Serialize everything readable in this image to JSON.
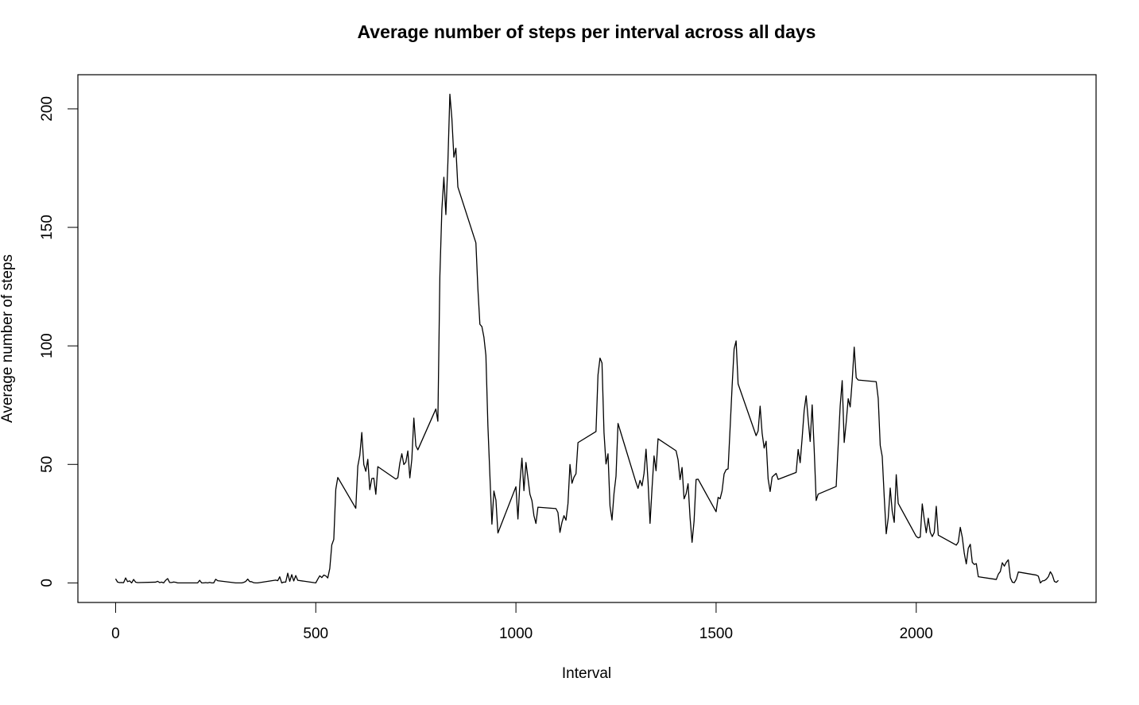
{
  "chart_data": {
    "type": "line",
    "title": "Average number of steps per interval across all days",
    "x_label": "Interval",
    "y_label": "Average number of steps",
    "xlim": [
      -94.2,
      2449.2
    ],
    "ylim": [
      -8.25,
      214.4
    ],
    "xticks": [
      0,
      500,
      1000,
      1500,
      2000
    ],
    "yticks": [
      0,
      50,
      100,
      150,
      200
    ],
    "color": "#000000",
    "x": [
      0,
      5,
      10,
      15,
      20,
      25,
      30,
      35,
      40,
      45,
      50,
      55,
      100,
      105,
      110,
      115,
      120,
      125,
      130,
      135,
      140,
      145,
      150,
      155,
      200,
      205,
      210,
      215,
      220,
      225,
      230,
      235,
      240,
      245,
      250,
      255,
      300,
      305,
      310,
      315,
      320,
      325,
      330,
      335,
      340,
      345,
      350,
      355,
      400,
      405,
      410,
      415,
      420,
      425,
      430,
      435,
      440,
      445,
      450,
      455,
      500,
      505,
      510,
      515,
      520,
      525,
      530,
      535,
      540,
      545,
      550,
      555,
      600,
      605,
      610,
      615,
      620,
      625,
      630,
      635,
      640,
      645,
      650,
      655,
      700,
      705,
      710,
      715,
      720,
      725,
      730,
      735,
      740,
      745,
      750,
      755,
      800,
      805,
      810,
      815,
      820,
      825,
      830,
      835,
      840,
      845,
      850,
      855,
      900,
      905,
      910,
      915,
      920,
      925,
      930,
      935,
      940,
      945,
      950,
      955,
      1000,
      1005,
      1010,
      1015,
      1020,
      1025,
      1030,
      1035,
      1040,
      1045,
      1050,
      1055,
      1100,
      1105,
      1110,
      1115,
      1120,
      1125,
      1130,
      1135,
      1140,
      1145,
      1150,
      1155,
      1200,
      1205,
      1210,
      1215,
      1220,
      1225,
      1230,
      1235,
      1240,
      1245,
      1250,
      1255,
      1300,
      1305,
      1310,
      1315,
      1320,
      1325,
      1330,
      1335,
      1340,
      1345,
      1350,
      1355,
      1400,
      1405,
      1410,
      1415,
      1420,
      1425,
      1430,
      1435,
      1440,
      1445,
      1450,
      1455,
      1500,
      1505,
      1510,
      1515,
      1520,
      1525,
      1530,
      1535,
      1540,
      1545,
      1550,
      1555,
      1600,
      1605,
      1610,
      1615,
      1620,
      1625,
      1630,
      1635,
      1640,
      1645,
      1650,
      1655,
      1700,
      1705,
      1710,
      1715,
      1720,
      1725,
      1730,
      1735,
      1740,
      1745,
      1750,
      1755,
      1800,
      1805,
      1810,
      1815,
      1820,
      1825,
      1830,
      1835,
      1840,
      1845,
      1850,
      1855,
      1900,
      1905,
      1910,
      1915,
      1920,
      1925,
      1930,
      1935,
      1940,
      1945,
      1950,
      1955,
      2000,
      2005,
      2010,
      2015,
      2020,
      2025,
      2030,
      2035,
      2040,
      2045,
      2050,
      2055,
      2100,
      2105,
      2110,
      2115,
      2120,
      2125,
      2130,
      2135,
      2140,
      2145,
      2150,
      2155,
      2200,
      2205,
      2210,
      2215,
      2220,
      2225,
      2230,
      2235,
      2240,
      2245,
      2250,
      2255,
      2300,
      2305,
      2310,
      2315,
      2320,
      2325,
      2330,
      2335,
      2340,
      2345,
      2350,
      2355
    ],
    "values": [
      1.72,
      0.34,
      0.13,
      0.15,
      0.08,
      2.09,
      0.53,
      0.87,
      0,
      1.47,
      0.3,
      0.13,
      0.32,
      0.68,
      0.15,
      0.34,
      0,
      1.11,
      1.83,
      0.17,
      0.17,
      0.38,
      0.26,
      0,
      0,
      0,
      1.11,
      0,
      0,
      0.13,
      0,
      0.23,
      0,
      0,
      1.55,
      0.94,
      0,
      0,
      0,
      0,
      0.21,
      0.62,
      1.62,
      0.58,
      0.49,
      0.08,
      0,
      0,
      1.19,
      0.94,
      2.57,
      0,
      0.34,
      0.36,
      4.11,
      0.66,
      3.49,
      0.83,
      3.11,
      1.11,
      0,
      1.57,
      3,
      2.25,
      3.32,
      2.96,
      2.09,
      6.06,
      16.02,
      18.34,
      39.45,
      44.49,
      31.49,
      49.26,
      53.77,
      63.45,
      49.96,
      47.08,
      52.15,
      39.34,
      44.02,
      44.17,
      37.36,
      49.04,
      43.81,
      44.38,
      50.51,
      54.51,
      49.92,
      50.98,
      55.68,
      44.32,
      52.26,
      69.55,
      57.85,
      56.15,
      73.38,
      68.21,
      129.43,
      157.53,
      171.15,
      155.4,
      177.3,
      206.17,
      195.92,
      179.57,
      183.4,
      167.02,
      143.45,
      124.04,
      109.11,
      108.11,
      103.72,
      95.97,
      66.21,
      45.23,
      24.79,
      38.75,
      34.98,
      21.06,
      40.57,
      26.98,
      42.42,
      52.66,
      38.92,
      50.79,
      44.28,
      37.42,
      34.7,
      28.34,
      25.09,
      31.94,
      31.36,
      29.68,
      21.32,
      25.55,
      28.38,
      26.47,
      33.43,
      49.98,
      42.04,
      44.6,
      46.04,
      59.19,
      63.87,
      87.7,
      94.85,
      92.77,
      63.4,
      50.17,
      54.47,
      32.42,
      26.53,
      37.74,
      45.06,
      67.28,
      42.34,
      39.88,
      43.26,
      40.98,
      46.25,
      56.43,
      42.75,
      25.13,
      39.96,
      53.55,
      47.32,
      60.81,
      55.75,
      51.96,
      43.58,
      48.7,
      35.47,
      37.55,
      41.85,
      27.51,
      17.11,
      26.08,
      43.62,
      43.77,
      30.02,
      36.08,
      35.49,
      38.85,
      45.96,
      47.75,
      48.13,
      65.32,
      82.91,
      98.66,
      102.11,
      83.96,
      62.13,
      64.13,
      74.55,
      63.17,
      56.91,
      59.77,
      43.87,
      38.57,
      44.66,
      45.45,
      46.21,
      43.68,
      46.62,
      56.3,
      50.72,
      61.23,
      72.72,
      78.94,
      68.94,
      59.66,
      75.09,
      56.51,
      34.77,
      37.45,
      40.68,
      58.02,
      74.7,
      85.32,
      59.26,
      67.77,
      77.7,
      74.25,
      85.34,
      99.45,
      86.58,
      85.6,
      84.87,
      77.83,
      58.04,
      53.36,
      36.32,
      20.72,
      27.4,
      40.02,
      30.21,
      25.55,
      45.66,
      33.53,
      19.62,
      19.02,
      19.34,
      33.34,
      26.81,
      21.17,
      27.3,
      21.34,
      19.55,
      21.32,
      32.3,
      20.15,
      15.94,
      17.23,
      23.45,
      19.25,
      12.45,
      8.02,
      14.66,
      16.3,
      8.68,
      7.79,
      8.13,
      2.62,
      1.45,
      3.68,
      4.81,
      8.51,
      7.08,
      8.7,
      9.75,
      2.21,
      0.32,
      0.11,
      1.6,
      4.6,
      3.3,
      2.85,
      0,
      0.83,
      0.96,
      1.58,
      2.6,
      4.7,
      3.3,
      0.64,
      0.23,
      1.08
    ]
  }
}
